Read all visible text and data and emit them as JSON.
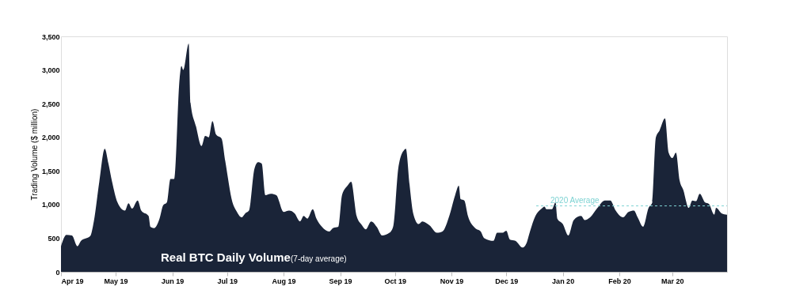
{
  "chart_data": {
    "type": "area",
    "title": "Real BTC Daily Volume",
    "subtitle": "(7-day average)",
    "ylabel": "Trading Volume ($ million)",
    "x": [
      "2019-04-01",
      "2019-04-04",
      "2019-04-07",
      "2019-04-10",
      "2019-04-12",
      "2019-04-17",
      "2019-04-19",
      "2019-04-22",
      "2019-04-25",
      "2019-04-27",
      "2019-04-29",
      "2019-05-02",
      "2019-05-06",
      "2019-05-08",
      "2019-05-10",
      "2019-05-13",
      "2019-05-15",
      "2019-05-19",
      "2019-05-20",
      "2019-05-22",
      "2019-05-25",
      "2019-05-27",
      "2019-05-29",
      "2019-05-31",
      "2019-06-02",
      "2019-06-05",
      "2019-06-06",
      "2019-06-07",
      "2019-06-10",
      "2019-06-11",
      "2019-06-14",
      "2019-06-17",
      "2019-06-19",
      "2019-06-21",
      "2019-06-23",
      "2019-06-25",
      "2019-06-28",
      "2019-06-30",
      "2019-07-04",
      "2019-07-06",
      "2019-07-09",
      "2019-07-11",
      "2019-07-13",
      "2019-07-16",
      "2019-07-18",
      "2019-07-20",
      "2019-07-22",
      "2019-07-25",
      "2019-07-28",
      "2019-08-01",
      "2019-08-04",
      "2019-08-07",
      "2019-08-10",
      "2019-08-12",
      "2019-08-14",
      "2019-08-17",
      "2019-08-19",
      "2019-08-22",
      "2019-08-26",
      "2019-08-28",
      "2019-08-31",
      "2019-09-02",
      "2019-09-05",
      "2019-09-07",
      "2019-09-10",
      "2019-09-13",
      "2019-09-15",
      "2019-09-18",
      "2019-09-21",
      "2019-09-24",
      "2019-09-28",
      "2019-09-30",
      "2019-10-03",
      "2019-10-06",
      "2019-10-07",
      "2019-10-09",
      "2019-10-11",
      "2019-10-14",
      "2019-10-16",
      "2019-10-20",
      "2019-10-24",
      "2019-10-27",
      "2019-10-31",
      "2019-11-03",
      "2019-11-05",
      "2019-11-06",
      "2019-11-08",
      "2019-11-10",
      "2019-11-14",
      "2019-11-17",
      "2019-11-19",
      "2019-11-24",
      "2019-11-26",
      "2019-11-29",
      "2019-12-01",
      "2019-12-03",
      "2019-12-06",
      "2019-12-10",
      "2019-12-12",
      "2019-12-14",
      "2019-12-17",
      "2019-12-20",
      "2019-12-22",
      "2019-12-23",
      "2019-12-26",
      "2019-12-28",
      "2019-12-29",
      "2020-01-01",
      "2020-01-04",
      "2020-01-07",
      "2020-01-11",
      "2020-01-13",
      "2020-01-16",
      "2020-01-20",
      "2020-01-24",
      "2020-01-27",
      "2020-01-30",
      "2020-02-03",
      "2020-02-06",
      "2020-02-09",
      "2020-02-11",
      "2020-02-14",
      "2020-02-17",
      "2020-02-19",
      "2020-02-21",
      "2020-02-23",
      "2020-02-26",
      "2020-02-28",
      "2020-03-01",
      "2020-03-03",
      "2020-03-05",
      "2020-03-07",
      "2020-03-10",
      "2020-03-12",
      "2020-03-14",
      "2020-03-16",
      "2020-03-19",
      "2020-03-21",
      "2020-03-24",
      "2020-03-25",
      "2020-03-28",
      "2020-03-31"
    ],
    "series": [
      {
        "color": "#1a2438",
        "values": [
          380,
          550,
          540,
          380,
          460,
          530,
          750,
          1340,
          1830,
          1610,
          1340,
          1030,
          910,
          1020,
          940,
          1060,
          910,
          830,
          670,
          650,
          790,
          990,
          1030,
          1380,
          1380,
          2870,
          3060,
          3000,
          3390,
          2510,
          2160,
          1870,
          2020,
          2000,
          2240,
          2040,
          1980,
          1650,
          1030,
          910,
          810,
          870,
          910,
          1530,
          1630,
          1610,
          1140,
          1160,
          1140,
          890,
          910,
          870,
          750,
          830,
          790,
          930,
          790,
          670,
          600,
          650,
          670,
          1140,
          1280,
          1340,
          830,
          690,
          630,
          750,
          670,
          540,
          580,
          670,
          1570,
          1810,
          1830,
          1300,
          870,
          710,
          750,
          690,
          580,
          600,
          850,
          1140,
          1280,
          1080,
          1060,
          830,
          650,
          600,
          500,
          460,
          580,
          580,
          610,
          480,
          460,
          360,
          420,
          600,
          830,
          930,
          970,
          930,
          930,
          1030,
          790,
          710,
          540,
          770,
          830,
          770,
          810,
          950,
          1060,
          1060,
          910,
          810,
          890,
          910,
          810,
          670,
          950,
          1030,
          2000,
          2100,
          2280,
          1770,
          1690,
          1770,
          1360,
          1220,
          950,
          1060,
          1050,
          1160,
          1030,
          1010,
          850,
          950,
          870,
          850
        ]
      }
    ],
    "xlim": [
      "2019-04-01",
      "2020-03-31"
    ],
    "xticks": [
      {
        "value": "2019-04-01",
        "label": "Apr 19"
      },
      {
        "value": "2019-05-01",
        "label": "May 19"
      },
      {
        "value": "2019-06-01",
        "label": "Jun 19"
      },
      {
        "value": "2019-07-01",
        "label": "Jul 19"
      },
      {
        "value": "2019-08-01",
        "label": "Aug 19"
      },
      {
        "value": "2019-09-01",
        "label": "Sep 19"
      },
      {
        "value": "2019-10-01",
        "label": "Oct 19"
      },
      {
        "value": "2019-11-01",
        "label": "Nov 19"
      },
      {
        "value": "2019-12-01",
        "label": "Dec 19"
      },
      {
        "value": "2020-01-01",
        "label": "Jan 20"
      },
      {
        "value": "2020-02-01",
        "label": "Feb 20"
      },
      {
        "value": "2020-03-01",
        "label": "Mar 20"
      }
    ],
    "ylim": [
      0,
      3500
    ],
    "yticks": [
      0,
      500,
      {
        "value": 1000,
        "label": "1,000"
      },
      {
        "value": 1500,
        "label": "1,500"
      },
      {
        "value": 2000,
        "label": "2,000"
      },
      {
        "value": 2500,
        "label": "2,500"
      },
      {
        "value": 3000,
        "label": "3,000"
      },
      {
        "value": 3500,
        "label": "3,500"
      }
    ],
    "ref_lines": [
      {
        "axis": "y",
        "value": 980,
        "label": "2020 Average",
        "color": "#7fd3d3",
        "line_style": "dashed"
      }
    ],
    "grid": false
  }
}
